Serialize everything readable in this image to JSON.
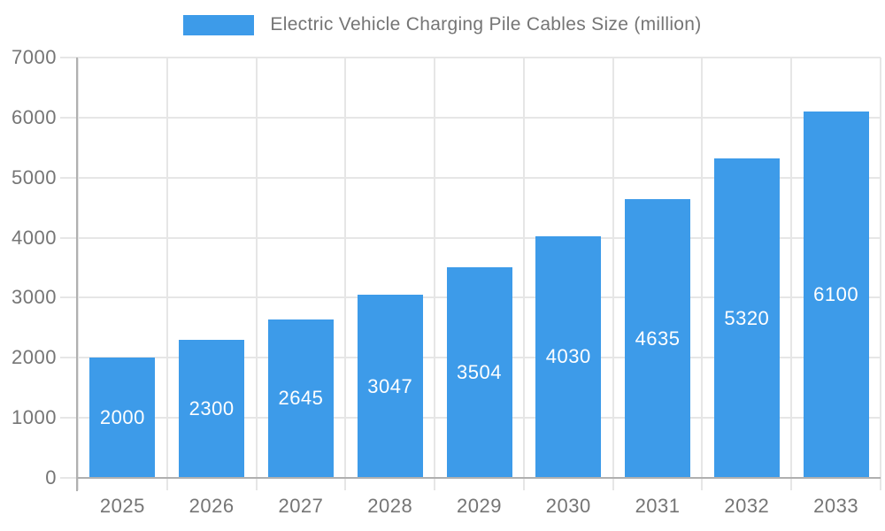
{
  "legend": {
    "label": "Electric Vehicle Charging Pile Cables Size (million)"
  },
  "chart_data": {
    "type": "bar",
    "title": "Electric Vehicle Charging Pile Cables Size (million)",
    "categories": [
      "2025",
      "2026",
      "2027",
      "2028",
      "2029",
      "2030",
      "2031",
      "2032",
      "2033"
    ],
    "values": [
      2000,
      2300,
      2645,
      3047,
      3504,
      4030,
      4635,
      5320,
      6100
    ],
    "series": [
      {
        "name": "Electric Vehicle Charging Pile Cables Size (million)",
        "values": [
          2000,
          2300,
          2645,
          3047,
          3504,
          4030,
          4635,
          5320,
          6100
        ]
      }
    ],
    "xlabel": "",
    "ylabel": "",
    "ylim": [
      0,
      7000
    ],
    "ytick_step": 1000,
    "ytick_labels": [
      "0",
      "1000",
      "2000",
      "3000",
      "4000",
      "5000",
      "6000",
      "7000"
    ],
    "grid": true,
    "legend_position": "top-center",
    "bar_color": "#3d9be9",
    "bar_label_color": "#ffffff",
    "axis_text_color": "#757575",
    "gridline_color": "#e6e6e6",
    "axis_line_color": "#b0b0b0"
  }
}
